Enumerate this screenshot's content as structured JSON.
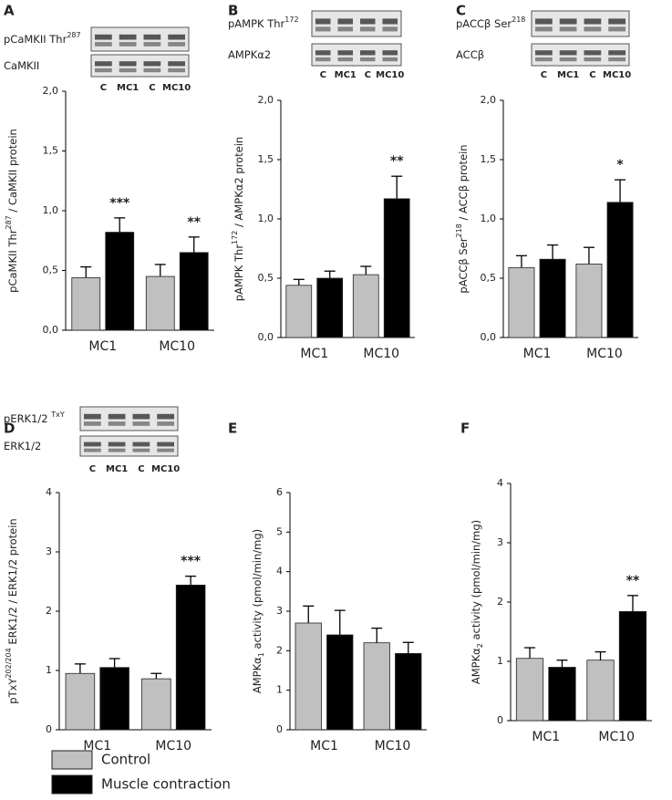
{
  "legend": [
    {
      "name": "Control",
      "color": "#c0c0c0"
    },
    {
      "name": "Muscle contraction",
      "color": "#000000"
    }
  ],
  "chart_data": [
    {
      "type": "bar",
      "panel": "A",
      "blot": {
        "rows": [
          [
            {
              "text": "pCaMKII Thr"
            },
            {
              "text": "287",
              "style": "sup"
            }
          ],
          [
            {
              "text": "CaMKII"
            }
          ]
        ],
        "lanes": [
          "C",
          "MC1",
          "C",
          "MC10"
        ]
      },
      "ylabel": [
        {
          "text": "pCaMKII Thr"
        },
        {
          "text": "287",
          "style": "sup"
        },
        {
          "text": " / CaMKII protein"
        }
      ],
      "categories": [
        "MC1",
        "MC10"
      ],
      "series": [
        {
          "values": [
            0.44,
            0.45
          ],
          "errors": [
            0.09,
            0.1
          ]
        },
        {
          "values": [
            0.82,
            0.65
          ],
          "errors": [
            0.12,
            0.13
          ]
        }
      ],
      "annotations": [
        {
          "text": "***",
          "series": 1,
          "index": 0
        },
        {
          "text": "**",
          "series": 1,
          "index": 1
        }
      ],
      "ylim": [
        0,
        2
      ],
      "yticks": [
        {
          "value": 0,
          "label": "0,0"
        },
        {
          "value": 0.5,
          "label": "0,5"
        },
        {
          "value": 1,
          "label": "1,0"
        },
        {
          "value": 1.5,
          "label": "1,5"
        },
        {
          "value": 2,
          "label": "2,0"
        }
      ]
    },
    {
      "type": "bar",
      "panel": "B",
      "blot": {
        "rows": [
          [
            {
              "text": "pAMPK Thr"
            },
            {
              "text": "172",
              "style": "sup"
            }
          ],
          [
            {
              "text": "AMPKα2"
            }
          ]
        ],
        "lanes": [
          "C",
          "MC1",
          "C",
          "MC10"
        ]
      },
      "ylabel": [
        {
          "text": "pAMPK Thr"
        },
        {
          "text": "172",
          "style": "sup"
        },
        {
          "text": " / AMPKα2 protein"
        }
      ],
      "categories": [
        "MC1",
        "MC10"
      ],
      "series": [
        {
          "values": [
            0.44,
            0.53
          ],
          "errors": [
            0.05,
            0.07
          ]
        },
        {
          "values": [
            0.5,
            1.17
          ],
          "errors": [
            0.06,
            0.19
          ]
        }
      ],
      "annotations": [
        {
          "text": "**",
          "series": 1,
          "index": 1
        }
      ],
      "ylim": [
        0,
        2
      ],
      "yticks": [
        {
          "value": 0,
          "label": "0,0"
        },
        {
          "value": 0.5,
          "label": "0,5"
        },
        {
          "value": 1,
          "label": "1,0"
        },
        {
          "value": 1.5,
          "label": "1,5"
        },
        {
          "value": 2,
          "label": "2,0"
        }
      ]
    },
    {
      "type": "bar",
      "panel": "C",
      "blot": {
        "rows": [
          [
            {
              "text": "pACCβ Ser"
            },
            {
              "text": "218",
              "style": "sup"
            }
          ],
          [
            {
              "text": "ACCβ"
            }
          ]
        ],
        "lanes": [
          "C",
          "MC1",
          "C",
          "MC10"
        ]
      },
      "ylabel": [
        {
          "text": "pACCβ Ser"
        },
        {
          "text": "218",
          "style": "sup"
        },
        {
          "text": " / ACCβ protein"
        }
      ],
      "categories": [
        "MC1",
        "MC10"
      ],
      "series": [
        {
          "values": [
            0.59,
            0.62
          ],
          "errors": [
            0.1,
            0.14
          ]
        },
        {
          "values": [
            0.66,
            1.14
          ],
          "errors": [
            0.12,
            0.19
          ]
        }
      ],
      "annotations": [
        {
          "text": "*",
          "series": 1,
          "index": 1
        }
      ],
      "ylim": [
        0,
        2
      ],
      "yticks": [
        {
          "value": 0,
          "label": "0,0"
        },
        {
          "value": 0.5,
          "label": "0,5"
        },
        {
          "value": 1,
          "label": "1,0"
        },
        {
          "value": 1.5,
          "label": "1,5"
        },
        {
          "value": 2,
          "label": "2,0"
        }
      ]
    },
    {
      "type": "bar",
      "panel": "D",
      "blot": {
        "rows": [
          [
            {
              "text": "pERK1/2 "
            },
            {
              "text": "TxY",
              "style": "sup"
            }
          ],
          [
            {
              "text": "ERK1/2"
            }
          ]
        ],
        "lanes": [
          "C",
          "MC1",
          "C",
          "MC10"
        ]
      },
      "ylabel": [
        {
          "text": "pTxY"
        },
        {
          "text": "202/204",
          "style": "sup"
        },
        {
          "text": " ERK1/2 / ERK1/2 protein"
        }
      ],
      "categories": [
        "MC1",
        "MC10"
      ],
      "series": [
        {
          "values": [
            0.95,
            0.86
          ],
          "errors": [
            0.16,
            0.09
          ]
        },
        {
          "values": [
            1.05,
            2.44
          ],
          "errors": [
            0.15,
            0.15
          ]
        }
      ],
      "annotations": [
        {
          "text": "***",
          "series": 1,
          "index": 1
        }
      ],
      "ylim": [
        0,
        4
      ],
      "yticks": [
        0,
        1,
        2,
        3,
        4
      ]
    },
    {
      "type": "bar",
      "panel": "E",
      "ylabel": [
        {
          "text": "AMPKα"
        },
        {
          "text": "1",
          "style": "sub"
        },
        {
          "text": " activity (pmol/min/mg)"
        }
      ],
      "categories": [
        "MC1",
        "MC10"
      ],
      "series": [
        {
          "values": [
            2.7,
            2.2
          ],
          "errors": [
            0.43,
            0.37
          ]
        },
        {
          "values": [
            2.4,
            1.93
          ],
          "errors": [
            0.62,
            0.28
          ]
        }
      ],
      "ylim": [
        0,
        6
      ],
      "yticks": [
        0,
        1,
        2,
        3,
        4,
        5,
        6
      ]
    },
    {
      "type": "bar",
      "panel": "F",
      "ylabel": [
        {
          "text": "AMPKα"
        },
        {
          "text": "2",
          "style": "sub"
        },
        {
          "text": " activity (pmol/min/mg)"
        }
      ],
      "categories": [
        "MC1",
        "MC10"
      ],
      "series": [
        {
          "values": [
            1.05,
            1.02
          ],
          "errors": [
            0.18,
            0.14
          ]
        },
        {
          "values": [
            0.9,
            1.84
          ],
          "errors": [
            0.12,
            0.27
          ]
        }
      ],
      "annotations": [
        {
          "text": "**",
          "series": 1,
          "index": 1
        }
      ],
      "ylim": [
        0,
        4
      ],
      "yticks": [
        0,
        1,
        2,
        3,
        4
      ]
    }
  ]
}
